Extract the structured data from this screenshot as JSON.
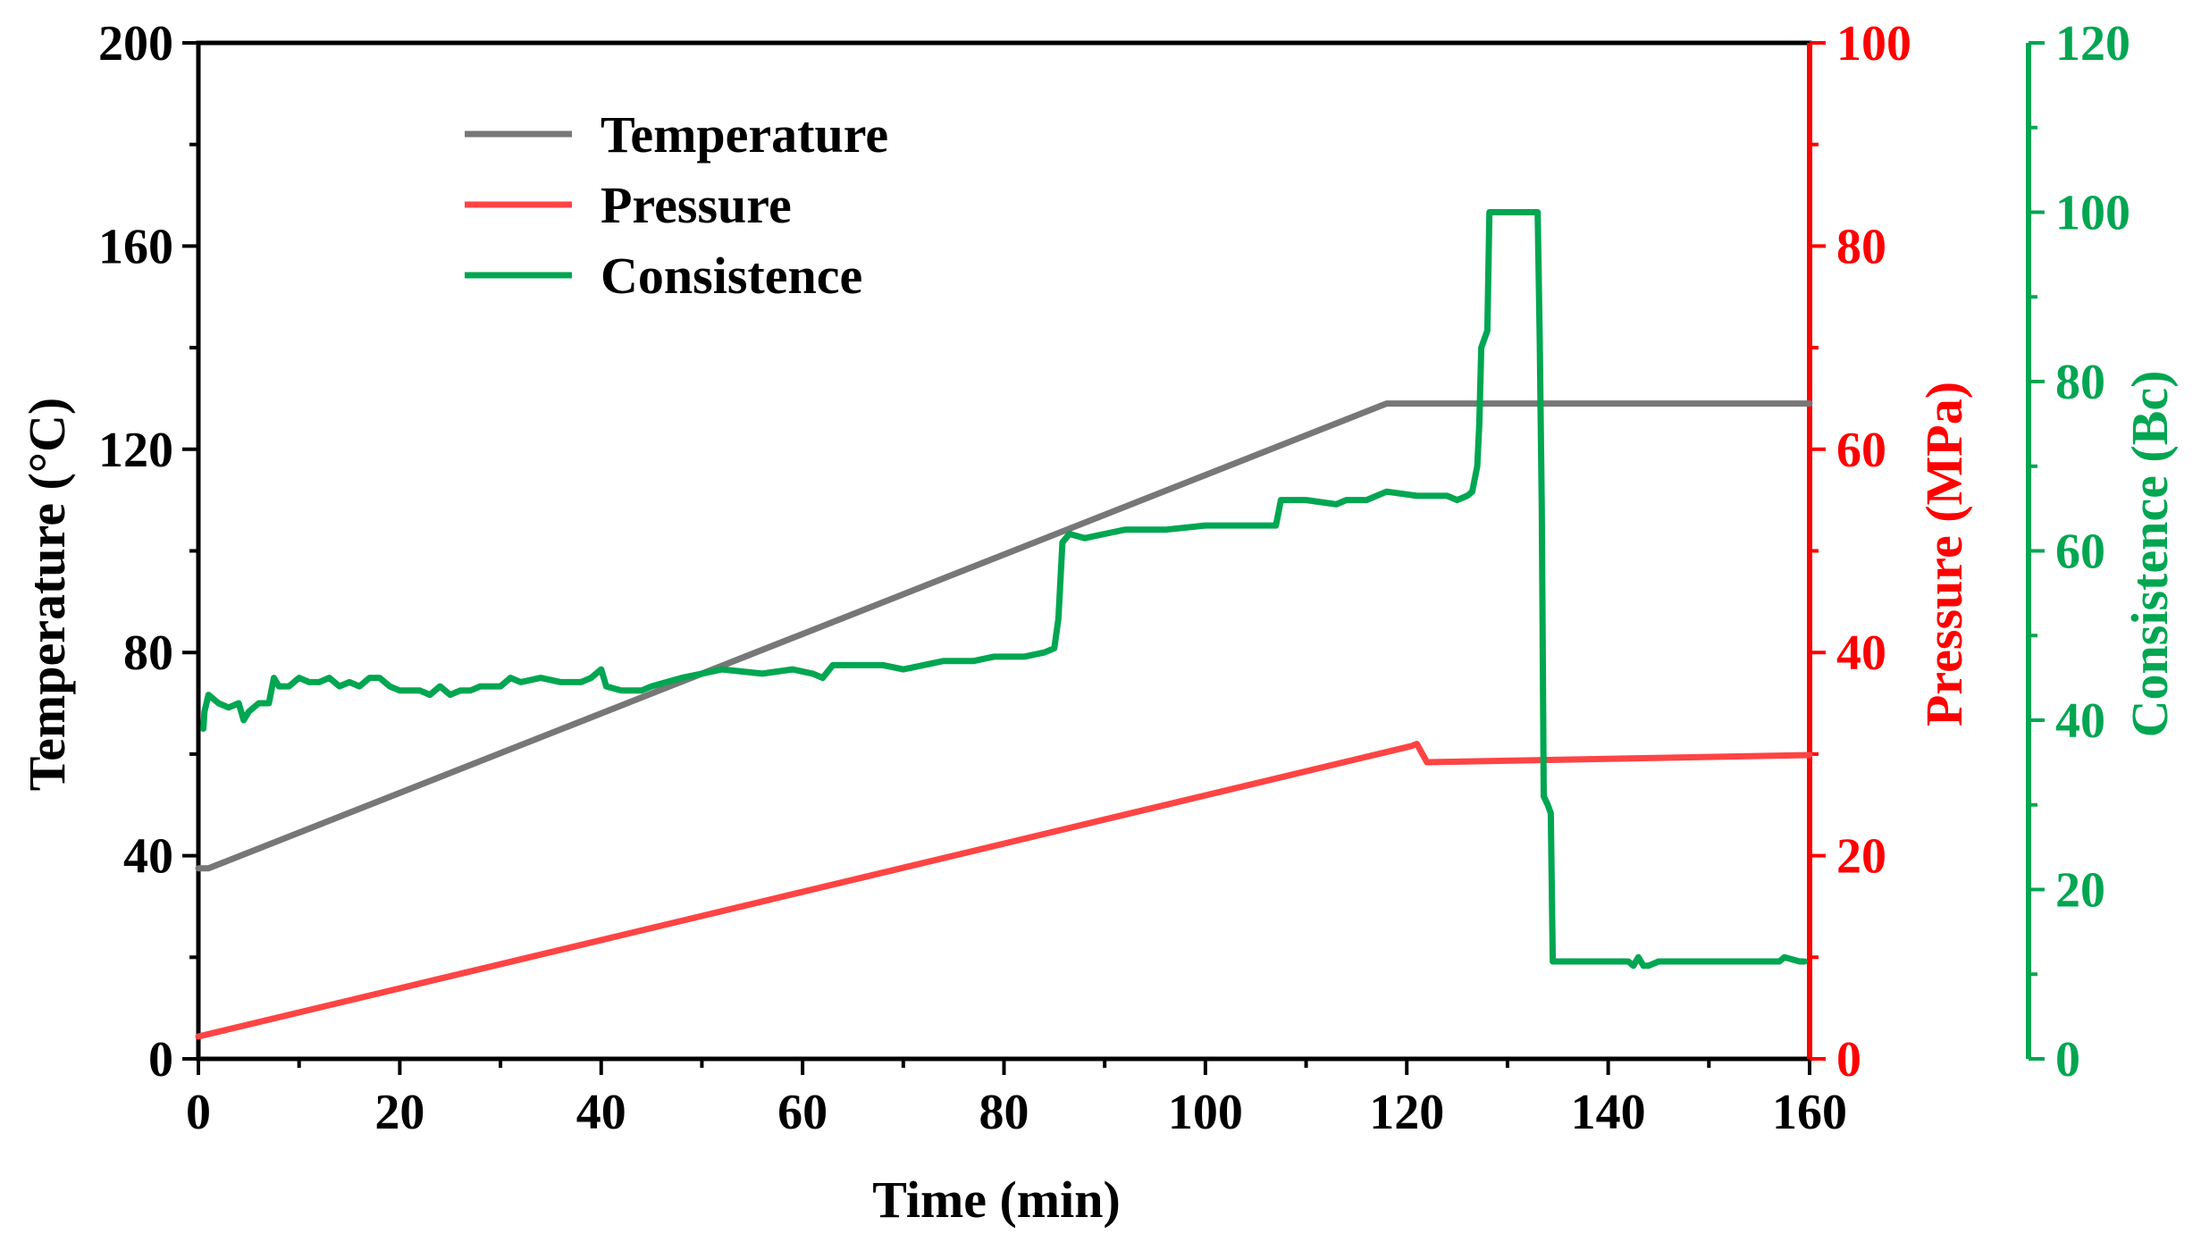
{
  "chart_data": {
    "type": "line",
    "title": "",
    "xlabel": "Time (min)",
    "xlim": [
      0,
      160
    ],
    "x_ticks": [
      0,
      20,
      40,
      60,
      80,
      100,
      120,
      140,
      160
    ],
    "axes": {
      "left": {
        "label": "Temperature (°C)",
        "color": "#000000",
        "lim": [
          0,
          200
        ],
        "ticks": [
          0,
          40,
          80,
          120,
          160,
          200
        ]
      },
      "right1": {
        "label": "Pressure (MPa)",
        "color": "#ff0000",
        "lim": [
          0,
          100
        ],
        "ticks": [
          0,
          20,
          40,
          60,
          80,
          100
        ]
      },
      "right2": {
        "label": "Consistence (Bc)",
        "color": "#00a651",
        "lim": [
          0,
          120
        ],
        "ticks": [
          0,
          20,
          40,
          60,
          80,
          100,
          120
        ]
      }
    },
    "legend_position": "top-left",
    "series": [
      {
        "name": "Temperature",
        "axis": "left",
        "color": "#777777",
        "points": [
          [
            0,
            37.5
          ],
          [
            1,
            37.5
          ],
          [
            118,
            129
          ],
          [
            160,
            129
          ]
        ]
      },
      {
        "name": "Pressure",
        "axis": "right1",
        "color": "#ff4444",
        "points": [
          [
            0,
            2.2
          ],
          [
            120.5,
            30.8
          ],
          [
            121,
            31
          ],
          [
            122,
            29.2
          ],
          [
            160,
            29.9
          ]
        ]
      },
      {
        "name": "Consistence",
        "axis": "right2",
        "color": "#00a651",
        "points": [
          [
            0.5,
            39
          ],
          [
            0.6,
            41
          ],
          [
            1,
            43
          ],
          [
            2,
            42
          ],
          [
            3,
            41.5
          ],
          [
            4,
            42
          ],
          [
            4.5,
            40
          ],
          [
            5,
            41
          ],
          [
            6,
            42
          ],
          [
            7,
            42
          ],
          [
            7.5,
            45
          ],
          [
            8,
            44
          ],
          [
            9,
            44
          ],
          [
            10,
            45
          ],
          [
            11,
            44.5
          ],
          [
            12,
            44.5
          ],
          [
            13,
            45
          ],
          [
            14,
            44
          ],
          [
            15,
            44.5
          ],
          [
            16,
            44
          ],
          [
            17,
            45
          ],
          [
            18,
            45
          ],
          [
            19,
            44
          ],
          [
            20,
            43.5
          ],
          [
            21,
            43.5
          ],
          [
            22,
            43.5
          ],
          [
            23,
            43
          ],
          [
            24,
            44
          ],
          [
            25,
            43
          ],
          [
            26,
            43.5
          ],
          [
            27,
            43.5
          ],
          [
            28,
            44
          ],
          [
            29,
            44
          ],
          [
            30,
            44
          ],
          [
            31,
            45
          ],
          [
            32,
            44.5
          ],
          [
            34,
            45
          ],
          [
            36,
            44.5
          ],
          [
            38,
            44.5
          ],
          [
            39,
            45
          ],
          [
            40,
            46
          ],
          [
            40.5,
            44
          ],
          [
            42,
            43.5
          ],
          [
            44,
            43.5
          ],
          [
            45,
            44
          ],
          [
            48,
            45
          ],
          [
            50,
            45.5
          ],
          [
            52,
            46
          ],
          [
            56,
            45.5
          ],
          [
            59,
            46
          ],
          [
            61,
            45.5
          ],
          [
            62,
            45
          ],
          [
            63,
            46.5
          ],
          [
            65,
            46.5
          ],
          [
            68,
            46.5
          ],
          [
            70,
            46
          ],
          [
            72,
            46.5
          ],
          [
            74,
            47
          ],
          [
            77,
            47
          ],
          [
            79,
            47.5
          ],
          [
            82,
            47.5
          ],
          [
            84,
            48
          ],
          [
            85,
            48.5
          ],
          [
            85.4,
            52
          ],
          [
            85.8,
            61
          ],
          [
            86.5,
            62
          ],
          [
            88,
            61.5
          ],
          [
            90,
            62
          ],
          [
            92,
            62.5
          ],
          [
            96,
            62.5
          ],
          [
            100,
            63
          ],
          [
            107,
            63
          ],
          [
            107.5,
            66
          ],
          [
            110,
            66
          ],
          [
            113,
            65.5
          ],
          [
            114,
            66
          ],
          [
            116,
            66
          ],
          [
            118,
            67
          ],
          [
            121,
            66.5
          ],
          [
            124,
            66.5
          ],
          [
            125,
            66
          ],
          [
            126,
            66.5
          ],
          [
            126.5,
            67
          ],
          [
            127,
            70
          ],
          [
            127.2,
            75
          ],
          [
            127.4,
            84
          ],
          [
            128,
            86
          ],
          [
            128.2,
            100
          ],
          [
            129,
            100
          ],
          [
            131,
            100
          ],
          [
            132,
            100
          ],
          [
            133,
            100
          ],
          [
            133.2,
            85
          ],
          [
            133.4,
            65
          ],
          [
            133.6,
            31
          ],
          [
            134,
            30
          ],
          [
            134.3,
            29
          ],
          [
            134.5,
            11.5
          ],
          [
            136,
            11.5
          ],
          [
            142,
            11.5
          ],
          [
            142.5,
            11
          ],
          [
            143,
            12
          ],
          [
            143.5,
            11
          ],
          [
            144,
            11
          ],
          [
            145,
            11.5
          ],
          [
            149,
            11.5
          ],
          [
            152,
            11.5
          ],
          [
            155,
            11.5
          ],
          [
            157,
            11.5
          ],
          [
            157.5,
            12
          ],
          [
            159,
            11.5
          ],
          [
            159.5,
            11.5
          ]
        ]
      }
    ]
  }
}
